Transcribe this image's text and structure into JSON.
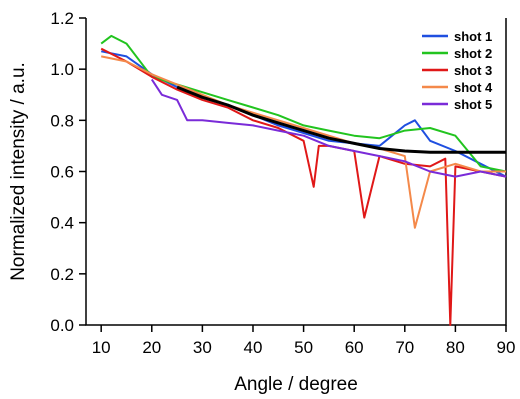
{
  "chart_data": {
    "type": "line",
    "title": "",
    "xlabel": "Angle / degree",
    "ylabel": "Normalized intensity / a.u.",
    "xlim": [
      7,
      90
    ],
    "ylim": [
      0.0,
      1.2
    ],
    "xticks": [
      "10",
      "20",
      "30",
      "40",
      "50",
      "60",
      "70",
      "80",
      "90"
    ],
    "yticks": [
      "0.0",
      "0.2",
      "0.4",
      "0.6",
      "0.8",
      "1.0",
      "1.2"
    ],
    "grid": false,
    "legend_position": "top-right",
    "series": [
      {
        "name": "shot 1",
        "color": "#1f4fe0",
        "x": [
          10,
          15,
          20,
          25,
          30,
          35,
          40,
          45,
          50,
          55,
          60,
          65,
          70,
          72,
          75,
          80,
          85,
          90
        ],
        "y": [
          1.07,
          1.05,
          0.98,
          0.93,
          0.89,
          0.86,
          0.82,
          0.78,
          0.75,
          0.72,
          0.71,
          0.7,
          0.78,
          0.8,
          0.72,
          0.68,
          0.63,
          0.58
        ]
      },
      {
        "name": "shot 2",
        "color": "#22c41f",
        "x": [
          10,
          12,
          15,
          20,
          25,
          30,
          35,
          40,
          45,
          50,
          55,
          60,
          65,
          70,
          75,
          80,
          85,
          90
        ],
        "y": [
          1.1,
          1.13,
          1.1,
          0.97,
          0.94,
          0.91,
          0.88,
          0.85,
          0.82,
          0.78,
          0.76,
          0.74,
          0.73,
          0.76,
          0.77,
          0.74,
          0.62,
          0.6
        ]
      },
      {
        "name": "shot 3",
        "color": "#e01818",
        "x": [
          10,
          15,
          20,
          25,
          30,
          35,
          40,
          45,
          50,
          52,
          53,
          55,
          60,
          62,
          65,
          70,
          75,
          78,
          79,
          80,
          85,
          90
        ],
        "y": [
          1.08,
          1.03,
          0.97,
          0.92,
          0.88,
          0.85,
          0.8,
          0.77,
          0.72,
          0.54,
          0.7,
          0.7,
          0.68,
          0.42,
          0.66,
          0.63,
          0.62,
          0.65,
          0.0,
          0.62,
          0.6,
          0.58
        ]
      },
      {
        "name": "shot 4",
        "color": "#f4894a",
        "x": [
          10,
          15,
          20,
          25,
          30,
          35,
          40,
          45,
          50,
          55,
          60,
          65,
          70,
          72,
          75,
          80,
          85,
          90
        ],
        "y": [
          1.05,
          1.03,
          0.98,
          0.94,
          0.9,
          0.86,
          0.83,
          0.8,
          0.77,
          0.74,
          0.71,
          0.69,
          0.66,
          0.38,
          0.6,
          0.63,
          0.6,
          0.6
        ]
      },
      {
        "name": "shot 5",
        "color": "#7a2bd8",
        "x": [
          20,
          22,
          25,
          27,
          30,
          35,
          40,
          45,
          50,
          55,
          60,
          65,
          70,
          75,
          80,
          85,
          90
        ],
        "y": [
          0.96,
          0.9,
          0.88,
          0.8,
          0.8,
          0.79,
          0.78,
          0.76,
          0.74,
          0.7,
          0.68,
          0.66,
          0.64,
          0.6,
          0.58,
          0.6,
          0.58
        ]
      },
      {
        "color": "#000000",
        "x": [
          25,
          30,
          35,
          40,
          45,
          50,
          55,
          60,
          65,
          70,
          75,
          80,
          85,
          90
        ],
        "y": [
          0.93,
          0.89,
          0.86,
          0.82,
          0.79,
          0.76,
          0.73,
          0.71,
          0.69,
          0.68,
          0.675,
          0.675,
          0.675,
          0.675
        ]
      }
    ]
  }
}
